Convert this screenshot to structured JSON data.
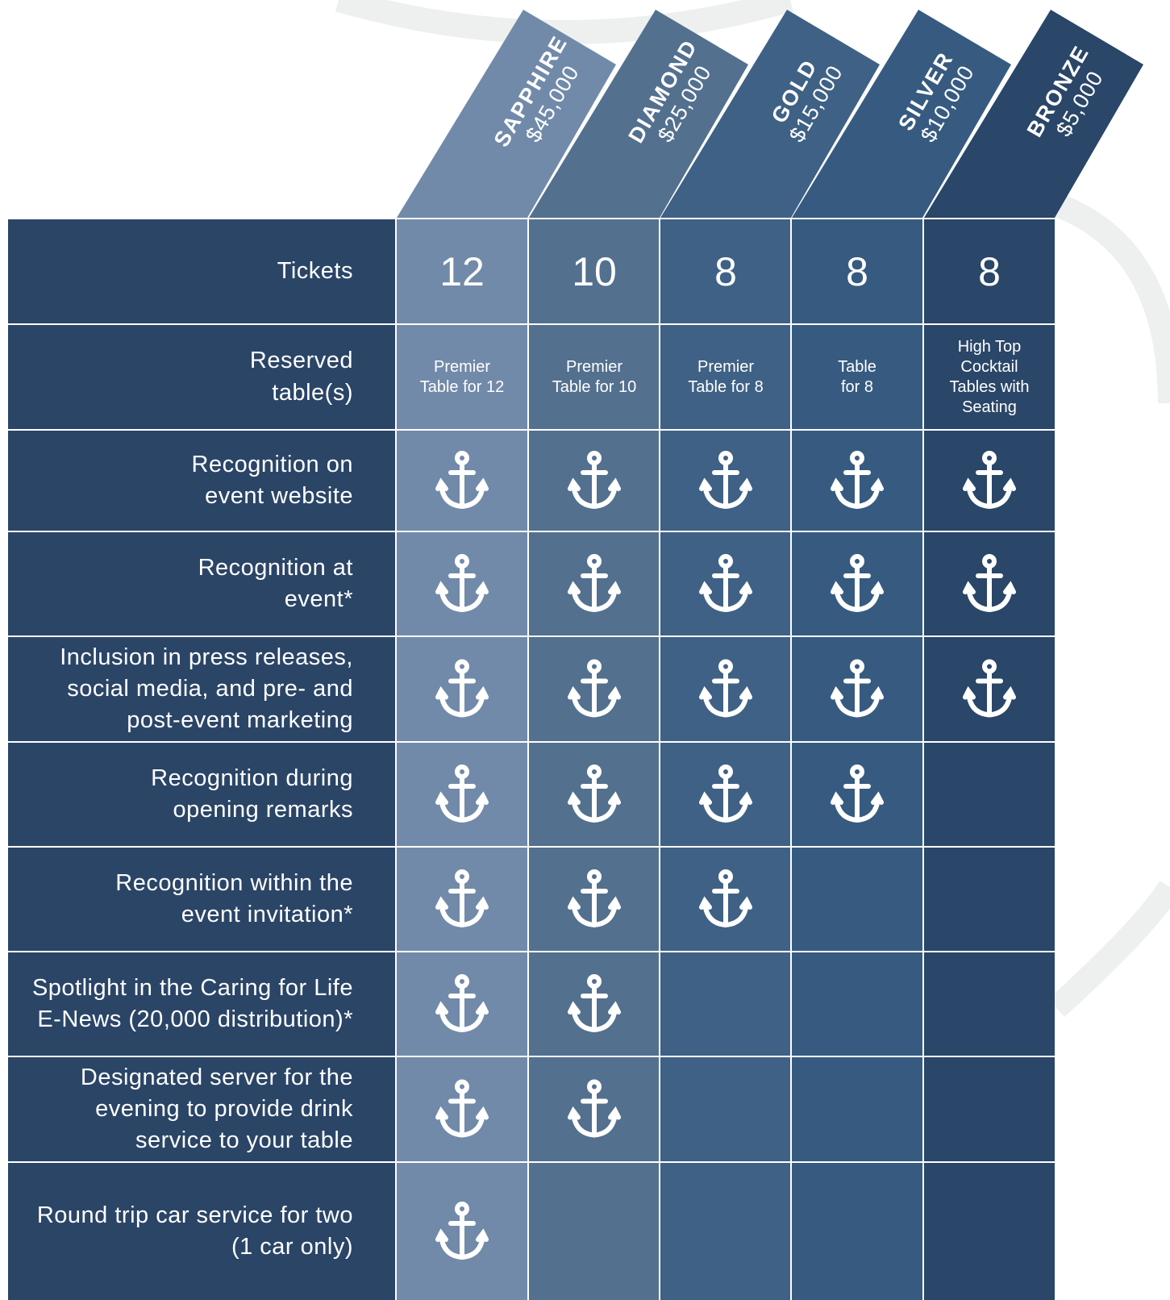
{
  "tiers": [
    {
      "name": "SAPPHIRE",
      "price": "$45,000"
    },
    {
      "name": "DIAMOND",
      "price": "$25,000"
    },
    {
      "name": "GOLD",
      "price": "$15,000"
    },
    {
      "name": "SILVER",
      "price": "$10,000"
    },
    {
      "name": "BRONZE",
      "price": "$5,000"
    }
  ],
  "rows": [
    {
      "label": "Tickets",
      "cells": [
        "12",
        "10",
        "8",
        "8",
        "8"
      ]
    },
    {
      "label": "Reserved\ntable(s)",
      "cells": [
        "Premier\nTable for 12",
        "Premier\nTable for 10",
        "Premier\nTable for 8",
        "Table\nfor 8",
        "High Top\nCocktail\nTables with\nSeating"
      ]
    },
    {
      "label": "Recognition on\nevent website",
      "included": [
        true,
        true,
        true,
        true,
        true
      ]
    },
    {
      "label": "Recognition at\nevent*",
      "included": [
        true,
        true,
        true,
        true,
        true
      ]
    },
    {
      "label": "Inclusion in press releases,\nsocial media, and pre- and\npost-event marketing",
      "included": [
        true,
        true,
        true,
        true,
        true
      ]
    },
    {
      "label": "Recognition during\nopening remarks",
      "included": [
        true,
        true,
        true,
        true,
        false
      ]
    },
    {
      "label": "Recognition within the\nevent invitation*",
      "included": [
        true,
        true,
        true,
        false,
        false
      ]
    },
    {
      "label": "Spotlight in the Caring for Life\nE-News (20,000 distribution)*",
      "included": [
        true,
        true,
        false,
        false,
        false
      ]
    },
    {
      "label": "Designated server for the\nevening to provide drink\nservice to your table",
      "included": [
        true,
        true,
        false,
        false,
        false
      ]
    },
    {
      "label": "Round trip car service for two\n(1 car only)",
      "included": [
        true,
        false,
        false,
        false,
        false
      ]
    }
  ]
}
